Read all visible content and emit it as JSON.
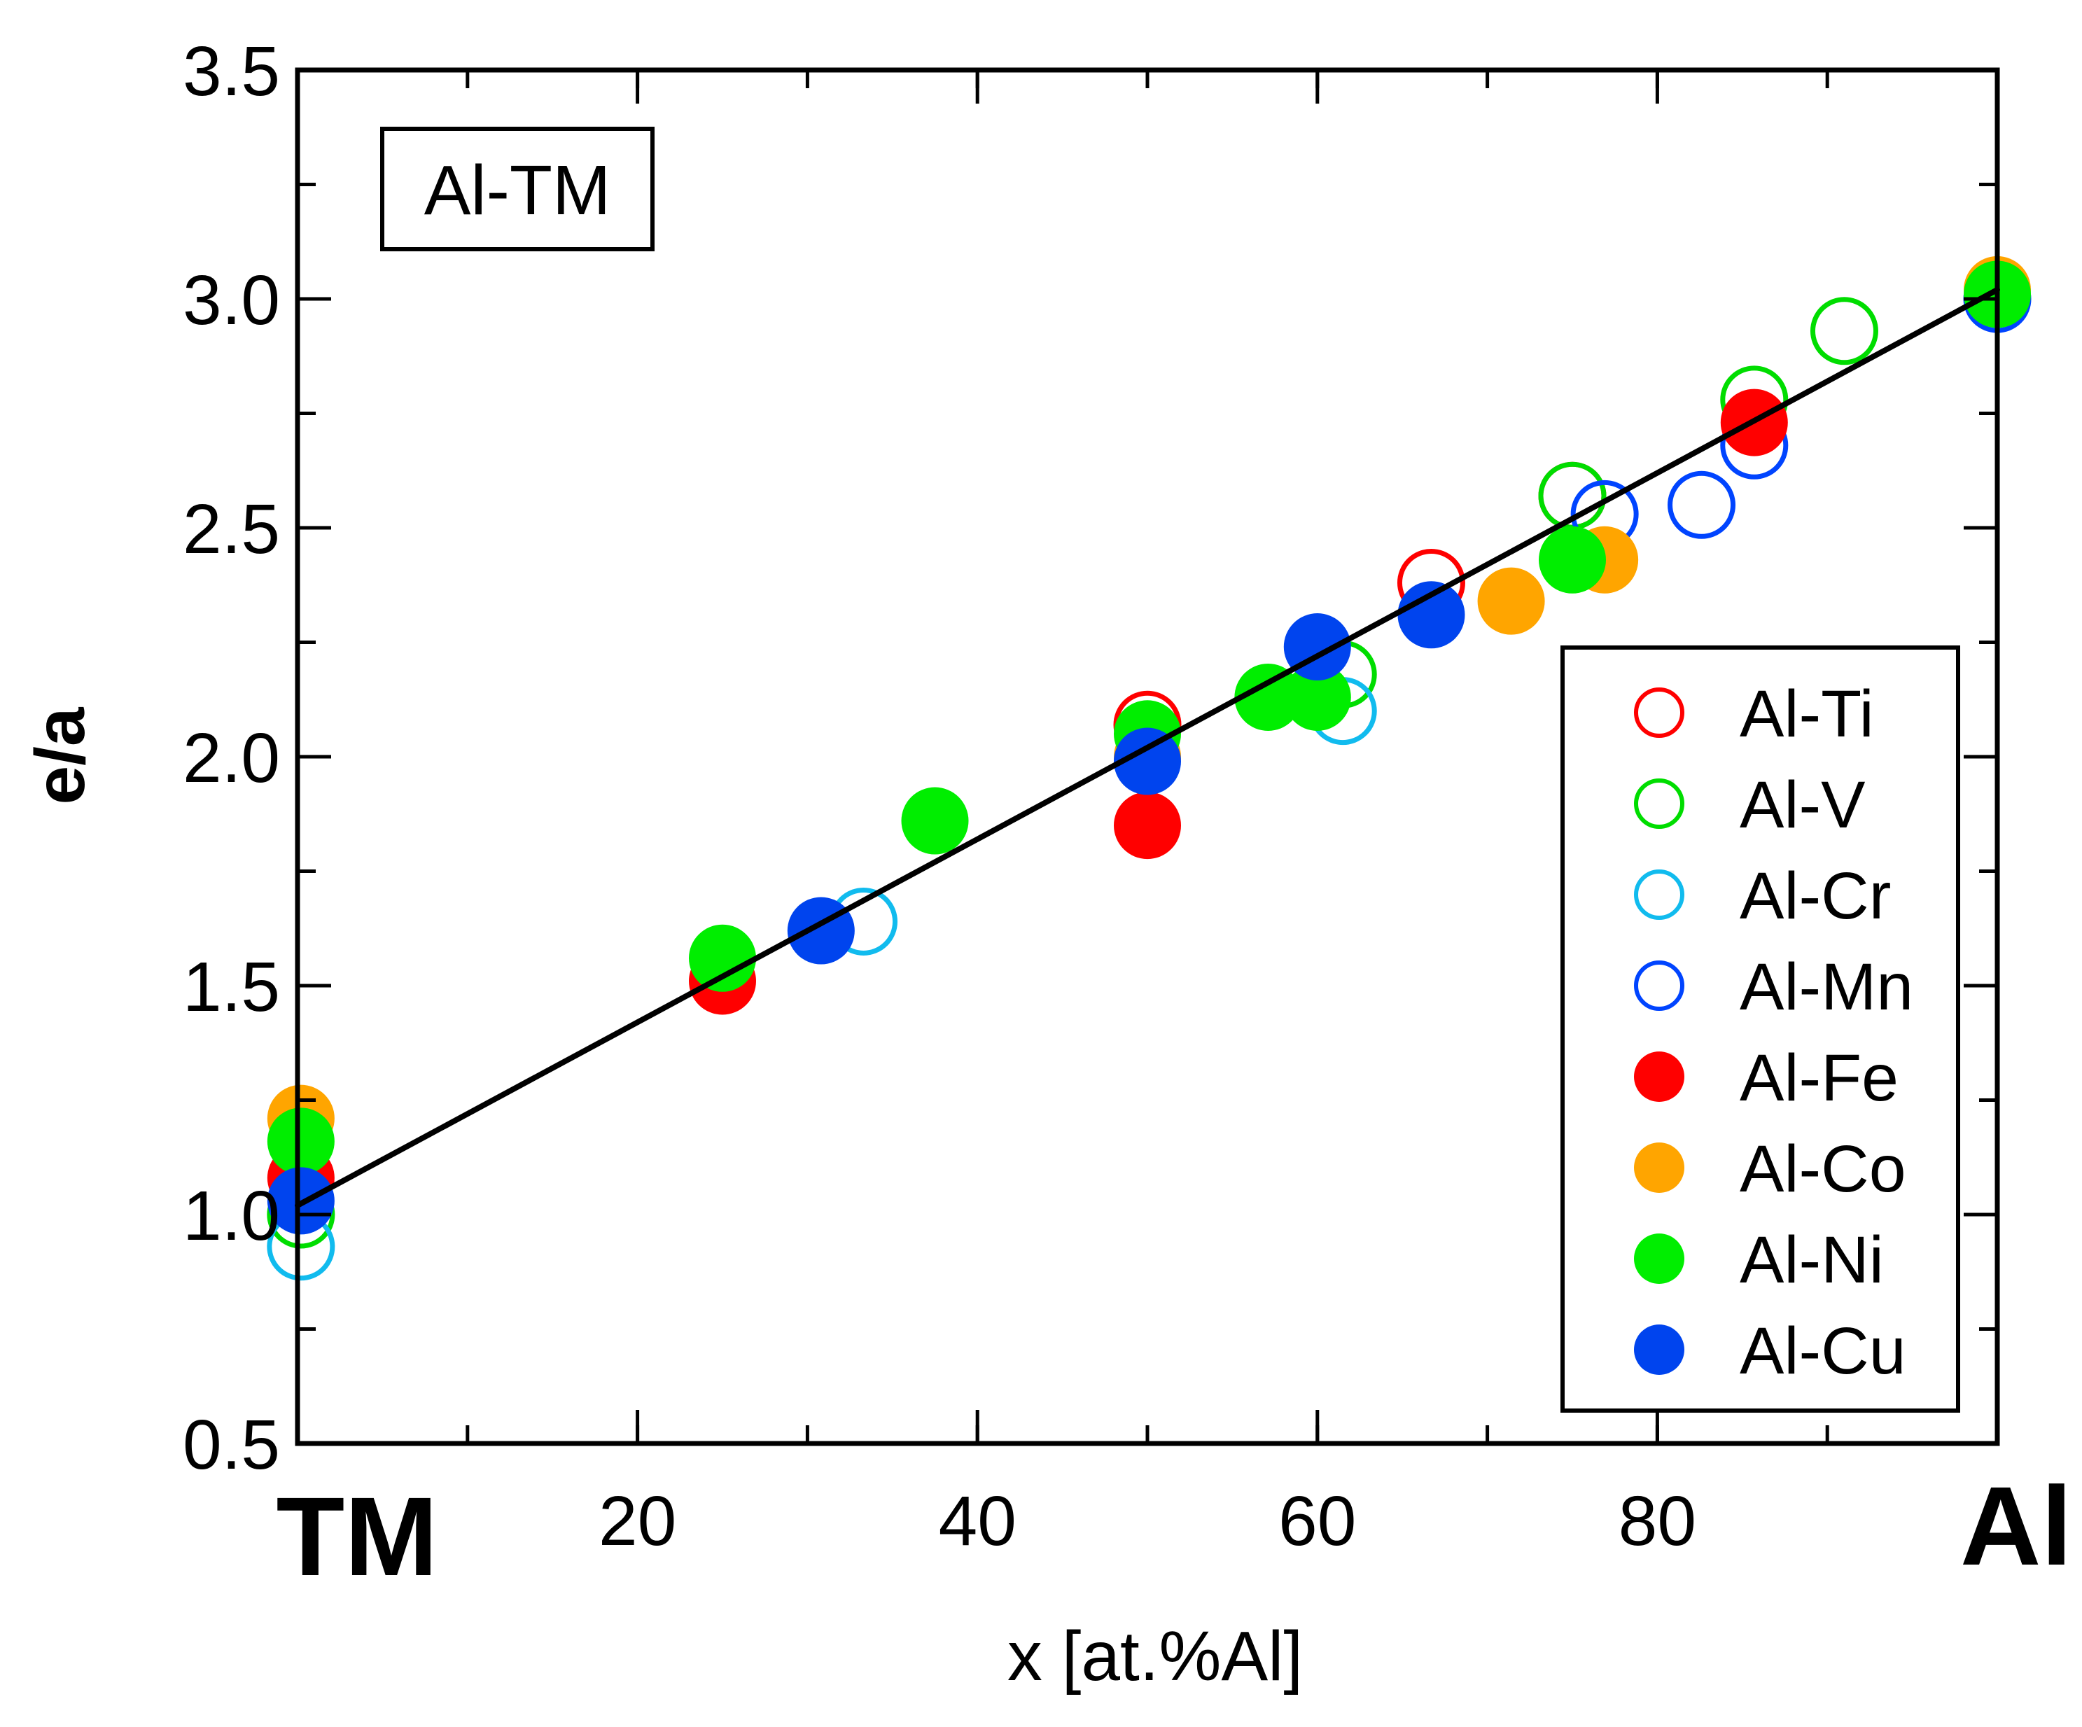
{
  "chart_data": {
    "type": "scatter",
    "title": "",
    "inset_label": "Al-TM",
    "xlabel": "x [at.%Al]",
    "ylabel": "e/a",
    "xlim": [
      0,
      100
    ],
    "ylim": [
      0.5,
      3.5
    ],
    "x_ticks": [
      20,
      40,
      60,
      80
    ],
    "x_end_labels": {
      "left": "TM",
      "right": "Al"
    },
    "y_ticks": [
      "0.5",
      "1.0",
      "1.5",
      "2.0",
      "2.5",
      "3.0",
      "3.5"
    ],
    "legend_position": "bottom-right",
    "grid": false,
    "fit_line": {
      "x": [
        0,
        100
      ],
      "y": [
        1.02,
        3.02
      ],
      "color": "#000000"
    },
    "series": [
      {
        "name": "Al-Ti",
        "marker": "open",
        "color": "#ff0000",
        "points": [
          [
            50.0,
            2.07
          ],
          [
            66.7,
            2.38
          ],
          [
            75.0,
            2.57
          ]
        ]
      },
      {
        "name": "Al-V",
        "marker": "open",
        "color": "#00dd00",
        "points": [
          [
            0.2,
            1.0
          ],
          [
            61.5,
            2.18
          ],
          [
            75.0,
            2.57
          ],
          [
            85.7,
            2.78
          ],
          [
            91.0,
            2.93
          ]
        ]
      },
      {
        "name": "Al-Cr",
        "marker": "open",
        "color": "#11bbee",
        "points": [
          [
            0.2,
            0.93
          ],
          [
            33.3,
            1.64
          ],
          [
            61.5,
            2.1
          ]
        ]
      },
      {
        "name": "Al-Mn",
        "marker": "open",
        "color": "#0044ff",
        "points": [
          [
            76.9,
            2.53
          ],
          [
            82.6,
            2.55
          ],
          [
            85.7,
            2.68
          ],
          [
            100.0,
            3.0
          ]
        ]
      },
      {
        "name": "Al-Fe",
        "marker": "filled",
        "color": "#ff0000",
        "points": [
          [
            0.2,
            1.08
          ],
          [
            25.0,
            1.51
          ],
          [
            50.0,
            1.85
          ],
          [
            85.7,
            2.73
          ]
        ]
      },
      {
        "name": "Al-Co",
        "marker": "filled",
        "color": "#ffa500",
        "points": [
          [
            0.2,
            1.21
          ],
          [
            50.0,
            2.0
          ],
          [
            71.4,
            2.34
          ],
          [
            76.9,
            2.43
          ],
          [
            100.0,
            3.02
          ]
        ]
      },
      {
        "name": "Al-Ni",
        "marker": "filled",
        "color": "#00ee00",
        "points": [
          [
            0.2,
            1.16
          ],
          [
            25.0,
            1.56
          ],
          [
            37.5,
            1.86
          ],
          [
            50.0,
            2.05
          ],
          [
            57.1,
            2.13
          ],
          [
            60.0,
            2.13
          ],
          [
            75.0,
            2.43
          ],
          [
            100.0,
            3.01
          ]
        ]
      },
      {
        "name": "Al-Cu",
        "marker": "filled",
        "color": "#0044ee",
        "points": [
          [
            0.2,
            1.03
          ],
          [
            30.8,
            1.62
          ],
          [
            50.0,
            1.99
          ],
          [
            60.0,
            2.24
          ],
          [
            66.7,
            2.31
          ]
        ]
      }
    ]
  }
}
